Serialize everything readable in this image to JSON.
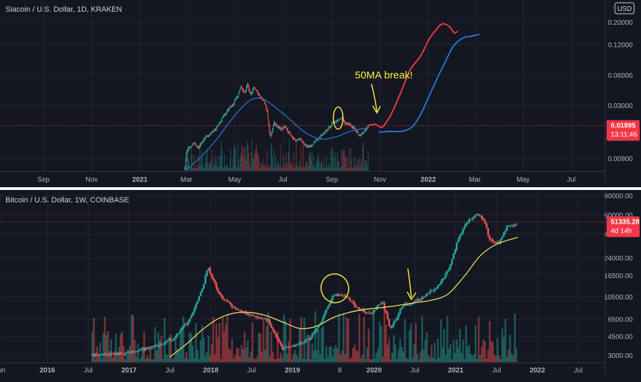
{
  "chart_data": [
    {
      "type": "candlestick",
      "title": "Siacoin / U.S. Dollar, 1D, KRAKEN",
      "currency_badge": "USD",
      "y_scale": "log",
      "ylim": [
        0.0068,
        0.33
      ],
      "y_ticks": [
        "0.20000",
        "0.12000",
        "0.06000",
        "0.03000",
        "0.00900"
      ],
      "y_tick_values": [
        0.2,
        0.12,
        0.06,
        0.03,
        0.009
      ],
      "x_ticks": [
        "Sep",
        "Nov",
        "2021",
        "Mar",
        "May",
        "Jul",
        "Sep",
        "Nov",
        "2022",
        "Mar",
        "May",
        "Jul"
      ],
      "x_tick_values": [
        0,
        61,
        122,
        181,
        242,
        303,
        365,
        426,
        487,
        546,
        607,
        668
      ],
      "x_tick_bold": [
        "2021",
        "2022"
      ],
      "xlim": [
        -55,
        711
      ],
      "last_price": {
        "label": "0.01895",
        "value": 0.01895,
        "countdown": "13:11:46",
        "color": "#f23645"
      },
      "annotation": {
        "text": "50MA break!",
        "color": "#ffeb3b"
      },
      "waypoints": [
        [
          179,
          0.0072
        ],
        [
          181,
          0.0105
        ],
        [
          186,
          0.0118
        ],
        [
          190,
          0.0128
        ],
        [
          196,
          0.0115
        ],
        [
          205,
          0.0145
        ],
        [
          212,
          0.0158
        ],
        [
          218,
          0.0175
        ],
        [
          225,
          0.0215
        ],
        [
          232,
          0.0265
        ],
        [
          240,
          0.0305
        ],
        [
          245,
          0.036
        ],
        [
          250,
          0.045
        ],
        [
          255,
          0.04
        ],
        [
          258,
          0.0495
        ],
        [
          262,
          0.038
        ],
        [
          266,
          0.0445
        ],
        [
          270,
          0.041
        ],
        [
          275,
          0.036
        ],
        [
          279,
          0.034
        ],
        [
          283,
          0.026
        ],
        [
          287,
          0.0145
        ],
        [
          292,
          0.02
        ],
        [
          300,
          0.0175
        ],
        [
          306,
          0.0185
        ],
        [
          312,
          0.0155
        ],
        [
          318,
          0.0135
        ],
        [
          324,
          0.0142
        ],
        [
          330,
          0.0125
        ],
        [
          336,
          0.0115
        ],
        [
          342,
          0.0128
        ],
        [
          350,
          0.0148
        ],
        [
          358,
          0.0168
        ],
        [
          365,
          0.0198
        ],
        [
          372,
          0.0215
        ],
        [
          377,
          0.0225
        ],
        [
          382,
          0.02
        ],
        [
          388,
          0.0195
        ],
        [
          394,
          0.0175
        ],
        [
          400,
          0.0152
        ],
        [
          406,
          0.0165
        ],
        [
          411,
          0.019
        ]
      ],
      "series": [
        {
          "name": "",
          "kind": "moving-average",
          "color": "#2a74c9",
          "x": [
            180,
            200,
            220,
            240,
            260,
            275,
            290,
            310,
            330,
            350,
            370,
            390,
            410
          ],
          "values": [
            0.0069,
            0.0094,
            0.0142,
            0.0228,
            0.0332,
            0.0352,
            0.0302,
            0.0225,
            0.0165,
            0.014,
            0.0147,
            0.0168,
            0.018
          ]
        },
        {
          "name": "",
          "kind": "projection",
          "color": "#f23645",
          "x": [
            411,
            420,
            428,
            434,
            440,
            446,
            452,
            458,
            463,
            468,
            478,
            488,
            498,
            505,
            514,
            520,
            524
          ],
          "values": [
            0.019,
            0.0195,
            0.0182,
            0.0205,
            0.0245,
            0.031,
            0.04,
            0.052,
            0.0655,
            0.0747,
            0.0942,
            0.135,
            0.1714,
            0.1919,
            0.1794,
            0.156,
            0.163
          ]
        },
        {
          "name": "",
          "kind": "projection",
          "color": "#2a74c9",
          "x": [
            424,
            438,
            452,
            460,
            468,
            478,
            488,
            498,
            508,
            518,
            530,
            542,
            552
          ],
          "values": [
            0.0163,
            0.0166,
            0.0166,
            0.0172,
            0.0189,
            0.025,
            0.037,
            0.055,
            0.079,
            0.113,
            0.138,
            0.145,
            0.151
          ]
        }
      ]
    },
    {
      "type": "candlestick",
      "title": "Bitcoin / U.S. Dollar, 1W, COINBASE",
      "y_scale": "log",
      "ylim": [
        2600,
        100000
      ],
      "y_ticks": [
        "90000.00",
        "60000.00",
        "40000.00",
        "24000.00",
        "16500.00",
        "10500.00",
        "6500.00",
        "4500.00",
        "3000.00"
      ],
      "y_tick_values": [
        90000,
        60000,
        40000,
        24000,
        16500,
        10500,
        6500,
        4500,
        3000
      ],
      "x_ticks": [
        "Jun",
        "2016",
        "Jul",
        "2017",
        "Jul",
        "2018",
        "Jul",
        "2019",
        "8",
        "2020",
        "Jul",
        "2021",
        "Jul",
        "2022",
        "Jul"
      ],
      "x_tick_values": [
        2015.42,
        2016.0,
        2016.5,
        2017.0,
        2017.5,
        2018.0,
        2018.5,
        2019.0,
        2019.58,
        2020.0,
        2020.5,
        2021.0,
        2021.5,
        2022.0,
        2022.5
      ],
      "x_tick_bold": [
        "2016",
        "2017",
        "2018",
        "2019",
        "2020",
        "2021",
        "2022"
      ],
      "xlim": [
        2015.42,
        2022.83
      ],
      "last_price": {
        "label": "51335.28",
        "value": 51335.28,
        "countdown": "4d 14h",
        "color": "#f23645"
      },
      "waypoints": [
        [
          2016.55,
          3000
        ],
        [
          2017.0,
          3150
        ],
        [
          2017.3,
          3600
        ],
        [
          2017.55,
          4300
        ],
        [
          2017.75,
          6500
        ],
        [
          2017.88,
          11500
        ],
        [
          2017.97,
          19500
        ],
        [
          2018.1,
          11000
        ],
        [
          2018.25,
          8500
        ],
        [
          2018.4,
          7400
        ],
        [
          2018.55,
          6800
        ],
        [
          2018.7,
          6400
        ],
        [
          2018.87,
          3500
        ],
        [
          2019.0,
          3600
        ],
        [
          2019.2,
          4200
        ],
        [
          2019.35,
          6000
        ],
        [
          2019.5,
          11000
        ],
        [
          2019.65,
          10500
        ],
        [
          2019.8,
          8200
        ],
        [
          2019.95,
          7200
        ],
        [
          2020.1,
          9500
        ],
        [
          2020.2,
          5200
        ],
        [
          2020.35,
          8700
        ],
        [
          2020.5,
          9300
        ],
        [
          2020.65,
          11000
        ],
        [
          2020.8,
          13500
        ],
        [
          2020.92,
          19000
        ],
        [
          2021.02,
          34000
        ],
        [
          2021.12,
          50000
        ],
        [
          2021.25,
          60000
        ],
        [
          2021.35,
          54000
        ],
        [
          2021.4,
          37000
        ],
        [
          2021.5,
          32000
        ],
        [
          2021.55,
          35000
        ],
        [
          2021.62,
          46000
        ],
        [
          2021.7,
          48000
        ],
        [
          2021.76,
          51300
        ]
      ],
      "series": [
        {
          "name": "",
          "kind": "moving-average",
          "color": "#f5e25f",
          "x": [
            2017.5,
            2017.7,
            2017.9,
            2018.1,
            2018.3,
            2018.5,
            2018.7,
            2018.9,
            2019.1,
            2019.3,
            2019.5,
            2019.7,
            2019.9,
            2020.1,
            2020.3,
            2020.5,
            2020.7,
            2020.9,
            2021.1,
            2021.3,
            2021.5,
            2021.76
          ],
          "values": [
            2900,
            3800,
            5200,
            6600,
            7400,
            7450,
            6900,
            6000,
            5300,
            5600,
            6700,
            7500,
            8000,
            8300,
            8700,
            9200,
            9700,
            11000,
            16000,
            25000,
            32000,
            37000
          ]
        }
      ],
      "annotation": {
        "color": "#ffeb3b"
      }
    }
  ]
}
